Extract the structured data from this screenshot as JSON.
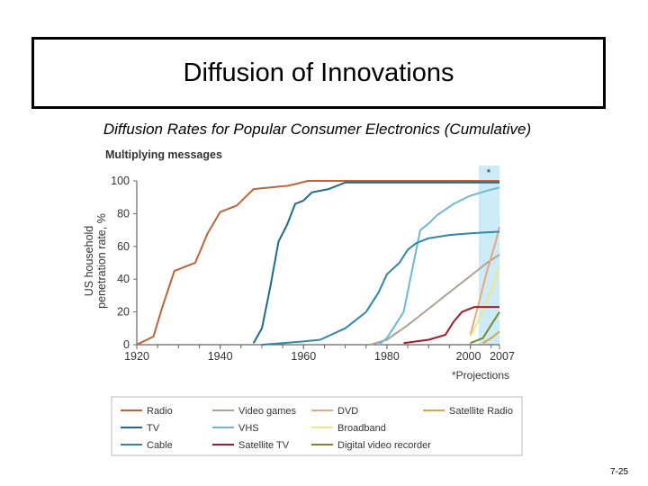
{
  "slide": {
    "title": "Diffusion of Innovations",
    "subtitle": "Diffusion Rates for Popular Consumer Electronics (Cumulative)",
    "slide_number": "7-25"
  },
  "chart_data": {
    "type": "line",
    "title": "Multiplying messages",
    "ylabel_line1": "US household",
    "ylabel_line2": "penetration rate, %",
    "xlabel": "",
    "xlim": [
      1920,
      2007
    ],
    "ylim": [
      0,
      100
    ],
    "x_ticks": [
      "1920",
      "1940",
      "1960",
      "1980",
      "2000",
      "2007"
    ],
    "y_ticks": [
      "0",
      "20",
      "40",
      "60",
      "80",
      "100"
    ],
    "projection_marker": "*",
    "projection_note": "*Projections",
    "projection_start": 2002,
    "series": [
      {
        "name": "Radio",
        "color": "#c0633b",
        "points": [
          [
            1920,
            0
          ],
          [
            1924,
            5
          ],
          [
            1926,
            22
          ],
          [
            1929,
            45
          ],
          [
            1932,
            48
          ],
          [
            1934,
            50
          ],
          [
            1937,
            68
          ],
          [
            1940,
            81
          ],
          [
            1942,
            83
          ],
          [
            1944,
            85
          ],
          [
            1946,
            90
          ],
          [
            1948,
            95
          ],
          [
            1952,
            96
          ],
          [
            1956,
            97
          ],
          [
            1958,
            98
          ],
          [
            1961,
            100
          ],
          [
            2007,
            100
          ]
        ]
      },
      {
        "name": "Video games",
        "color": "#aea393",
        "points": [
          [
            1976,
            0
          ],
          [
            1980,
            3
          ],
          [
            1985,
            12
          ],
          [
            1990,
            22
          ],
          [
            1995,
            32
          ],
          [
            2000,
            42
          ],
          [
            2004,
            50
          ],
          [
            2007,
            55
          ]
        ]
      },
      {
        "name": "DVD",
        "color": "#e8a87c",
        "points": [
          [
            2000,
            6
          ],
          [
            2002,
            25
          ],
          [
            2004,
            45
          ],
          [
            2006,
            62
          ],
          [
            2007,
            72
          ]
        ]
      },
      {
        "name": "Satellite Radio",
        "color": "#d9a441",
        "points": [
          [
            2003,
            1
          ],
          [
            2005,
            4
          ],
          [
            2007,
            8
          ]
        ]
      },
      {
        "name": "TV",
        "color": "#1d6a8c",
        "points": [
          [
            1948,
            1
          ],
          [
            1950,
            10
          ],
          [
            1952,
            35
          ],
          [
            1954,
            63
          ],
          [
            1956,
            73
          ],
          [
            1958,
            86
          ],
          [
            1960,
            88
          ],
          [
            1962,
            93
          ],
          [
            1966,
            95
          ],
          [
            1970,
            99
          ],
          [
            1980,
            99
          ],
          [
            2007,
            99
          ]
        ]
      },
      {
        "name": "VHS",
        "color": "#6db8d8",
        "points": [
          [
            1978,
            0
          ],
          [
            1980,
            4
          ],
          [
            1984,
            20
          ],
          [
            1986,
            45
          ],
          [
            1988,
            70
          ],
          [
            1990,
            74
          ],
          [
            1992,
            79
          ],
          [
            1996,
            86
          ],
          [
            2000,
            91
          ],
          [
            2004,
            94
          ],
          [
            2007,
            96
          ]
        ]
      },
      {
        "name": "Broadband",
        "color": "#f0e68c",
        "points": [
          [
            2000,
            5
          ],
          [
            2002,
            15
          ],
          [
            2004,
            27
          ],
          [
            2006,
            40
          ],
          [
            2007,
            48
          ]
        ]
      },
      {
        "name": "Cable",
        "color": "#2f88a8",
        "points": [
          [
            1950,
            0
          ],
          [
            1955,
            1
          ],
          [
            1960,
            2
          ],
          [
            1964,
            3
          ],
          [
            1970,
            10
          ],
          [
            1975,
            20
          ],
          [
            1978,
            32
          ],
          [
            1980,
            43
          ],
          [
            1983,
            50
          ],
          [
            1985,
            58
          ],
          [
            1987,
            62
          ],
          [
            1990,
            65
          ],
          [
            1995,
            67
          ],
          [
            2000,
            68
          ],
          [
            2007,
            69
          ]
        ]
      },
      {
        "name": "Satellite TV",
        "color": "#9b1d2a",
        "points": [
          [
            1984,
            1
          ],
          [
            1990,
            3
          ],
          [
            1994,
            6
          ],
          [
            1996,
            14
          ],
          [
            1998,
            20
          ],
          [
            2001,
            23
          ],
          [
            2007,
            23
          ]
        ]
      },
      {
        "name": "Digital video recorder",
        "color": "#7a8a2a",
        "points": [
          [
            2000,
            1
          ],
          [
            2003,
            4
          ],
          [
            2005,
            12
          ],
          [
            2007,
            20
          ]
        ]
      }
    ],
    "legend_order": [
      "Radio",
      "Video games",
      "DVD",
      "Satellite Radio",
      "TV",
      "VHS",
      "Broadband",
      "Cable",
      "Satellite TV",
      "Digital video recorder"
    ]
  }
}
